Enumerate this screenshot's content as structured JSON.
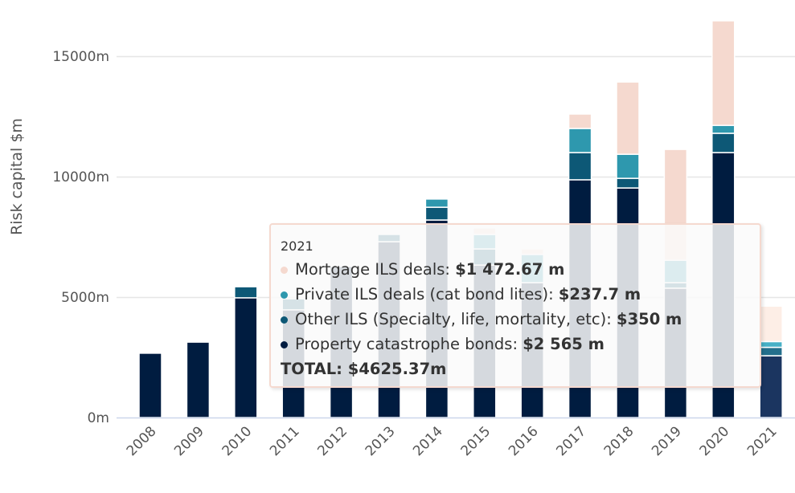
{
  "chart_data": {
    "type": "bar",
    "stacked": true,
    "title": "",
    "xlabel": "",
    "ylabel": "Risk capital $m",
    "ylim": [
      0,
      16500
    ],
    "yticks": [
      "0m",
      "5000m",
      "10000m",
      "15000m"
    ],
    "ytick_values": [
      0,
      5000,
      10000,
      15000
    ],
    "grid": true,
    "categories": [
      "2008",
      "2009",
      "2010",
      "2011",
      "2012",
      "2013",
      "2014",
      "2015",
      "2016",
      "2017",
      "2018",
      "2019",
      "2020",
      "2021"
    ],
    "series": [
      {
        "name": "Property catastrophe bonds",
        "color": "#001c40",
        "values": [
          2670,
          3130,
          4970,
          4470,
          6270,
          7300,
          8200,
          6330,
          5600,
          9870,
          9530,
          5370,
          11000,
          2565
        ]
      },
      {
        "name": "Other ILS (Specialty, life, mortality, etc)",
        "color": "#0d5876",
        "values": [
          0,
          0,
          460,
          460,
          0,
          300,
          530,
          670,
          0,
          1130,
          400,
          230,
          800,
          350
        ]
      },
      {
        "name": "Private ILS deals (cat bond lites)",
        "color": "#2e98ae",
        "values": [
          0,
          0,
          0,
          0,
          0,
          0,
          340,
          600,
          1170,
          1000,
          1000,
          930,
          330,
          237.7
        ]
      },
      {
        "name": "Mortgage ILS deals",
        "color": "#f5d9cf",
        "values": [
          0,
          0,
          0,
          0,
          0,
          0,
          0,
          270,
          230,
          600,
          3000,
          4600,
          4340,
          1472.67
        ]
      }
    ],
    "hovered_category": "2021"
  },
  "tooltip": {
    "header": "2021",
    "rows": [
      {
        "label": "Mortgage ILS deals: ",
        "value": "$1 472.67 m",
        "color": "#f5d9cf"
      },
      {
        "label": "Private ILS deals (cat bond lites): ",
        "value": "$237.7 m",
        "color": "#2e98ae"
      },
      {
        "label": "Other ILS (Specialty, life, mortality, etc): ",
        "value": "$350 m",
        "color": "#0d5876"
      },
      {
        "label": "Property catastrophe bonds: ",
        "value": "$2 565 m",
        "color": "#001c40"
      }
    ],
    "total": "TOTAL: $4625.37m"
  }
}
